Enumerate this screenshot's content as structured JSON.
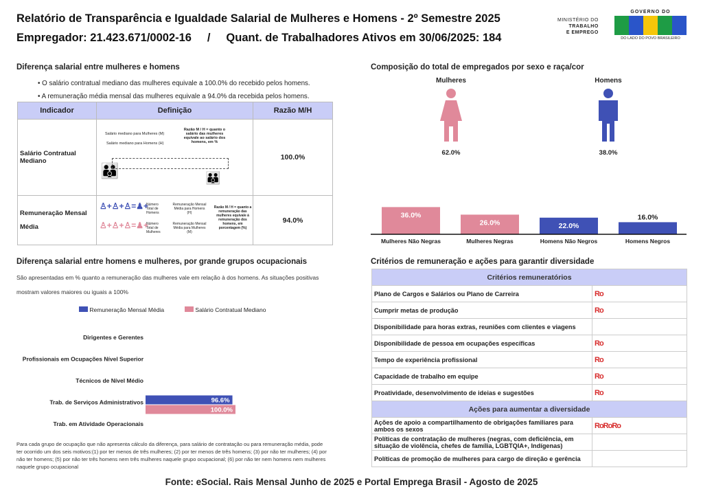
{
  "header": {
    "title": "Relatório de Transparência e Igualdade Salarial de Mulheres e Homens - 2º Semestre 2025",
    "subtitle": "Empregador: 21.423.671/0002-16     /     Quant. de Trabalhadores Ativos em 30/06/2025: 184",
    "ministry": [
      "MINISTÉRIO DO",
      "TRABALHO",
      "E EMPREGO"
    ],
    "gov_top": "GOVERNO DO",
    "gov_logo": "BRASIL",
    "gov_bottom": "DO LADO DO POVO BRASILEIRO"
  },
  "diff": {
    "title": "Diferença salarial entre mulheres e homens",
    "bullets": [
      "O salário contratual mediano das mulheres equivale a 100.0% do recebido pelos homens.",
      "A remuneração média mensal das mulheres equivale a 94.0% da recebida pelos homens."
    ],
    "headers": [
      "Indicador",
      "Definição",
      "Razão M/H"
    ],
    "rows": [
      {
        "indicador": "Salário Contratual Mediano",
        "razao": "100.0%",
        "def_a": "Salário mediano para Mulheres (M)",
        "def_b": "Salário mediano para Homens (H)",
        "def_c": "Razão M / H = quanto o salário das mulheres equivale ao salário dos homens, em %"
      },
      {
        "indicador": "Remuneração Mensal Média",
        "razao": "94.0%",
        "def_a": "Número Total de Homens",
        "def_b": "Remuneração Mensal Média para Homens (H)",
        "def_c": "Número Total de Mulheres",
        "def_d": "Remuneração Mensal Média para Mulheres (M)",
        "def_e": "Razão M / H = quanto a remuneração das mulheres equivale à remuneração dos homens, em porcentagem (%)"
      }
    ]
  },
  "comp": {
    "title": "Composição do total de empregados por sexo e raça/cor",
    "women_label": "Mulheres",
    "men_label": "Homens",
    "women_pct": "62.0%",
    "men_pct": "38.0%"
  },
  "occ": {
    "title": "Diferença salarial entre homens e mulheres, por grande grupos ocupacionais",
    "desc": "São apresentadas em % quanto a remuneração das mulheres vale em relação à dos homens. As situações positivas mostram valores maiores ou iguais a 100%",
    "note": "Para cada grupo de ocupação que não apresenta cálculo da diferença, para salário de contratação ou para remuneração média, pode ter ocorrido um dos seis motivos:(1) por ter menos de três mulheres; (2) por ter menos de três homens; (3) por não ter mulheres; (4) por não ter homens; (5) por não ter três homens nem três mulheres naquele grupo ocupacional; (6) por não ter nem homens nem mulheres naquele grupo ocupacional"
  },
  "crit": {
    "title": "Critérios de remuneração e ações para garantir diversidade",
    "h1": "Critérios remuneratórios",
    "rows1": [
      {
        "label": "Plano de Cargos e Salários ou Plano de Carreira",
        "icons": 1
      },
      {
        "label": "Cumprir metas de produção",
        "icons": 1
      },
      {
        "label": "Disponibilidade para horas extras, reuniões com clientes e viagens",
        "icons": 0
      },
      {
        "label": "Disponibilidade de pessoa em ocupações específicas",
        "icons": 1
      },
      {
        "label": "Tempo de experiência profissional",
        "icons": 1
      },
      {
        "label": "Capacidade de trabalho em equipe",
        "icons": 1
      },
      {
        "label": "Proatividade, desenvolvimento de ideias e sugestões",
        "icons": 1
      }
    ],
    "h2": "Ações para aumentar a diversidade",
    "rows2": [
      {
        "label": "Ações de apoio a compartilhamento de obrigações familiares para ambos os sexos",
        "icons": 3
      },
      {
        "label": "Políticas de contratação de mulheres (negras, com deficiência, em situação de violência, chefes de família, LGBTQIA+, Indígenas)",
        "icons": 0
      },
      {
        "label": "Políticas de promoção de mulheres para cargo de direção e gerência",
        "icons": 0
      }
    ],
    "icon_glyph": "Ro"
  },
  "footer": "Fonte: eSocial. Rais Mensal Junho de 2025 e Portal Emprega Brasil - Agosto de 2025",
  "colors": {
    "blue": "#3f51b5",
    "pink": "#e0899a"
  },
  "chart_data": [
    {
      "type": "bar",
      "title": "Composição do total de empregados por sexo e raça/cor",
      "categories": [
        "Mulheres Não Negras",
        "Mulheres Negras",
        "Homens Não Negros",
        "Homens Negros"
      ],
      "values": [
        36.0,
        26.0,
        22.0,
        16.0
      ],
      "labels": [
        "36.0%",
        "26.0%",
        "22.0%",
        "16.0%"
      ],
      "colors": [
        "#e0899a",
        "#e0899a",
        "#3f51b5",
        "#3f51b5"
      ]
    },
    {
      "type": "bar",
      "orientation": "horizontal",
      "categories": [
        "Dirigentes e Gerentes",
        "Profissionais em Ocupações Nível Superior",
        "Técnicos de Nível Médio",
        "Trab. de Serviços Administrativos",
        "Trab. em Atividade Operacionais"
      ],
      "series": [
        {
          "name": "Remuneração Mensal Média",
          "color": "#3f51b5",
          "values": [
            null,
            null,
            null,
            96.6,
            null
          ]
        },
        {
          "name": "Salário Contratual Mediano",
          "color": "#e0899a",
          "values": [
            null,
            null,
            null,
            100.0,
            null
          ]
        }
      ],
      "labels": [
        null,
        null,
        null,
        [
          "96.6%",
          "100.0%"
        ],
        null
      ]
    }
  ]
}
